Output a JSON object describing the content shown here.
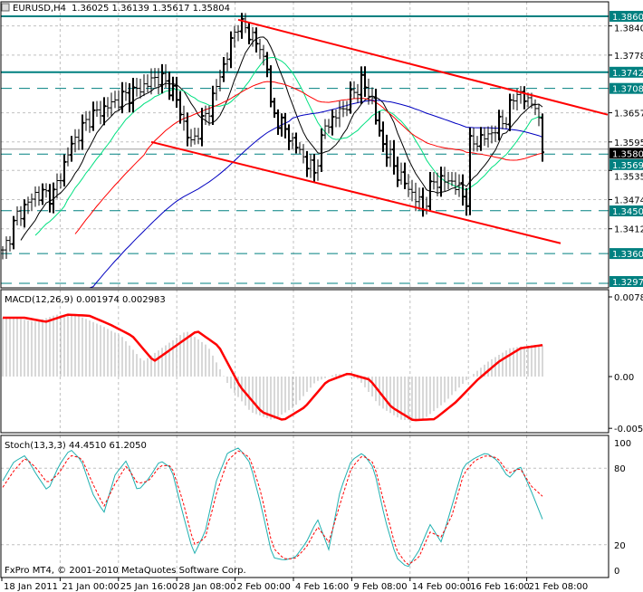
{
  "chart_data": {
    "type": "line",
    "title": "EURUSD,H4",
    "ohlc_readout": "1.36025 1.36139 1.35617 1.35804",
    "current_price": "1.35804",
    "price_range": [
      1.329,
      1.389
    ],
    "price_ticks": [
      "1.38400",
      "1.37785",
      "1.36570",
      "1.35955",
      "1.35355",
      "1.34740",
      "1.34125"
    ],
    "levels": [
      {
        "label": "1.38603",
        "price": 1.38603,
        "style": "solid"
      },
      {
        "label": "1.37424",
        "price": 1.37424,
        "style": "solid"
      },
      {
        "label": "1.37083",
        "price": 1.37083,
        "style": "dashed"
      },
      {
        "label": "1.35699",
        "price": 1.35699,
        "style": "dashed"
      },
      {
        "label": "1.34507",
        "price": 1.34507,
        "style": "dashed"
      },
      {
        "label": "1.33603",
        "price": 1.33603,
        "style": "dashed"
      },
      {
        "label": "1.32975",
        "price": 1.32975,
        "style": "dashed"
      }
    ],
    "channels": [
      {
        "bar_from": 65,
        "price_from": 1.3853,
        "bar_to": 167,
        "price_to": 1.3653
      },
      {
        "bar_from": 41,
        "price_from": 1.35955,
        "bar_to": 154,
        "price_to": 1.3382
      }
    ],
    "bar_count": 150,
    "close_path": [
      [
        0,
        1.336
      ],
      [
        4,
        1.344
      ],
      [
        9,
        1.3485
      ],
      [
        14,
        1.3485
      ],
      [
        19,
        1.359
      ],
      [
        24,
        1.3647
      ],
      [
        32,
        1.3685
      ],
      [
        37,
        1.3704
      ],
      [
        43,
        1.3733
      ],
      [
        47,
        1.3704
      ],
      [
        52,
        1.359
      ],
      [
        57,
        1.3666
      ],
      [
        62,
        1.378
      ],
      [
        65,
        1.3847
      ],
      [
        69,
        1.3818
      ],
      [
        73,
        1.376
      ],
      [
        74,
        1.3666
      ],
      [
        79,
        1.3609
      ],
      [
        86,
        1.353
      ],
      [
        89,
        1.3628
      ],
      [
        94,
        1.3666
      ],
      [
        99,
        1.3723
      ],
      [
        102,
        1.3685
      ],
      [
        104,
        1.3609
      ],
      [
        109,
        1.353
      ],
      [
        116,
        1.3456
      ],
      [
        119,
        1.3513
      ],
      [
        124,
        1.3513
      ],
      [
        128,
        1.3475
      ],
      [
        129,
        1.359
      ],
      [
        134,
        1.3609
      ],
      [
        139,
        1.3647
      ],
      [
        142,
        1.3704
      ],
      [
        144,
        1.3685
      ],
      [
        147,
        1.3676
      ],
      [
        149,
        1.358
      ]
    ],
    "moving_averages": [
      {
        "period": 10,
        "color": "#000000"
      },
      {
        "period": 18,
        "color": "#00e080"
      },
      {
        "period": 40,
        "color": "#ff0000"
      },
      {
        "period": 80,
        "color": "#0000c0"
      }
    ],
    "macd": {
      "label": "MACD(12,26,9) 0.001974 0.002983",
      "range": [
        -0.0061,
        0.008
      ],
      "ticks": [
        "0.00785",
        "0.00",
        "-0.00510"
      ],
      "signal": [
        0.0058,
        0.0058,
        0.0054,
        0.0061,
        0.006,
        0.0051,
        0.004,
        0.0015,
        0.003,
        0.0045,
        0.003,
        -0.001,
        -0.0035,
        -0.0043,
        -0.003,
        -0.0005,
        0.0003,
        -0.0003,
        -0.003,
        -0.0043,
        -0.0042,
        -0.0025,
        -0.0003,
        0.0015,
        0.0028,
        0.0031
      ]
    },
    "stoch": {
      "label": "Stoch(13,3,3) 44.4510 61.2050",
      "ticks": [
        "100",
        "80",
        "20",
        "0"
      ],
      "main": [
        70,
        85,
        90,
        75,
        62,
        82,
        95,
        86,
        60,
        45,
        75,
        86,
        62,
        72,
        86,
        80,
        45,
        12,
        30,
        70,
        92,
        96,
        84,
        50,
        10,
        8,
        10,
        22,
        40,
        16,
        62,
        86,
        92,
        80,
        40,
        10,
        2,
        15,
        36,
        22,
        52,
        82,
        88,
        92,
        86,
        72,
        82,
        62,
        40
      ],
      "signal": [
        65,
        78,
        88,
        80,
        68,
        76,
        90,
        88,
        68,
        50,
        68,
        82,
        68,
        70,
        82,
        82,
        55,
        20,
        25,
        60,
        86,
        94,
        88,
        60,
        18,
        9,
        9,
        18,
        34,
        22,
        52,
        80,
        90,
        84,
        50,
        16,
        4,
        10,
        30,
        26,
        44,
        76,
        86,
        90,
        88,
        76,
        80,
        66,
        58
      ]
    },
    "x_labels": [
      "18 Jan 2011",
      "21 Jan 00:00",
      "25 Jan 16:00",
      "28 Jan 08:00",
      "2 Feb 00:00",
      "4 Feb 16:00",
      "9 Feb 08:00",
      "14 Feb 00:00",
      "16 Feb 16:00",
      "21 Feb 08:00"
    ]
  },
  "footer": "FxPro MT4, © 2001-2010 MetaQuotes Software Corp.",
  "colors": {
    "level": "#008080",
    "channel": "#ff0000",
    "bars": "#000000"
  }
}
